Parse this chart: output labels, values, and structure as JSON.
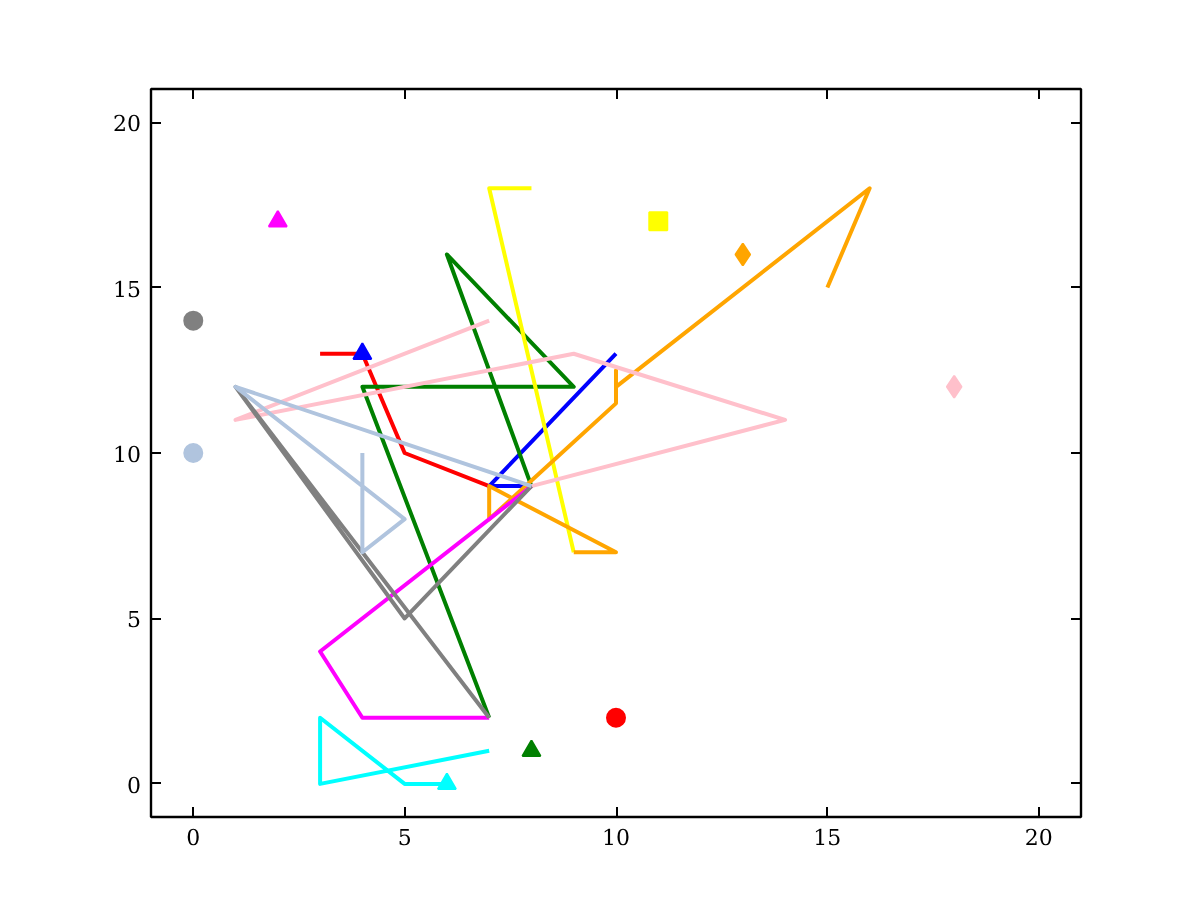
{
  "chart_data": {
    "type": "line",
    "xlim": [
      -1,
      21
    ],
    "ylim": [
      -1,
      21
    ],
    "xticks": [
      0,
      5,
      10,
      15,
      20
    ],
    "yticks": [
      0,
      5,
      10,
      15,
      20
    ],
    "grid": false,
    "line_style": "solid",
    "series": [
      {
        "color": "#ff0000",
        "x": [
          3,
          4,
          5,
          7
        ],
        "values": [
          13,
          13,
          10,
          9
        ]
      },
      {
        "color": "#0000ff",
        "x": [
          8,
          7,
          10
        ],
        "values": [
          9,
          9,
          13
        ]
      },
      {
        "color": "#008000",
        "x": [
          8,
          6,
          9,
          4,
          7
        ],
        "values": [
          9,
          16,
          12,
          12,
          2
        ]
      },
      {
        "color": "#ffff00",
        "x": [
          8,
          7,
          9
        ],
        "values": [
          18,
          18,
          7
        ]
      },
      {
        "color": "#ffa500",
        "x": [
          9,
          10,
          7,
          7,
          10,
          10,
          10,
          16,
          15
        ],
        "values": [
          7,
          7,
          9,
          8,
          11.5,
          12.5,
          12,
          18,
          15
        ]
      },
      {
        "color": "#ffc0cb",
        "x": [
          7,
          1,
          9,
          14,
          8
        ],
        "values": [
          14,
          11,
          13,
          11,
          9
        ]
      },
      {
        "color": "#ff00ff",
        "x": [
          7,
          4,
          3,
          8
        ],
        "values": [
          2,
          2,
          4,
          9
        ]
      },
      {
        "color": "#00ffff",
        "x": [
          7,
          3,
          3,
          5,
          6
        ],
        "values": [
          1,
          0,
          2,
          0,
          0
        ]
      },
      {
        "color": "#808080",
        "x": [
          8,
          5,
          1,
          7
        ],
        "values": [
          9,
          5,
          12,
          2
        ]
      },
      {
        "color": "#b0c4de",
        "x": [
          4,
          4,
          5,
          1,
          8
        ],
        "values": [
          10,
          7,
          8,
          12,
          9
        ]
      },
      {
        "type": "scatter",
        "marker": "circle",
        "color": "#ff0000",
        "x": [
          10
        ],
        "values": [
          2
        ]
      },
      {
        "type": "scatter",
        "marker": "triangle",
        "color": "#0000ff",
        "x": [
          4
        ],
        "values": [
          13
        ]
      },
      {
        "type": "scatter",
        "marker": "triangle",
        "color": "#008000",
        "x": [
          8
        ],
        "values": [
          1
        ]
      },
      {
        "type": "scatter",
        "marker": "square",
        "color": "#ffff00",
        "x": [
          11
        ],
        "values": [
          17
        ]
      },
      {
        "type": "scatter",
        "marker": "diamond",
        "color": "#ffa500",
        "x": [
          13
        ],
        "values": [
          16
        ]
      },
      {
        "type": "scatter",
        "marker": "diamond",
        "color": "#ffc0cb",
        "x": [
          18
        ],
        "values": [
          12
        ]
      },
      {
        "type": "scatter",
        "marker": "triangle",
        "color": "#ff00ff",
        "x": [
          2
        ],
        "values": [
          17
        ]
      },
      {
        "type": "scatter",
        "marker": "triangle",
        "color": "#00ffff",
        "x": [
          6
        ],
        "values": [
          0
        ]
      },
      {
        "type": "scatter",
        "marker": "circle",
        "color": "#808080",
        "x": [
          0
        ],
        "values": [
          14
        ]
      },
      {
        "type": "scatter",
        "marker": "circle",
        "color": "#b0c4de",
        "x": [
          0
        ],
        "values": [
          10
        ]
      }
    ]
  }
}
